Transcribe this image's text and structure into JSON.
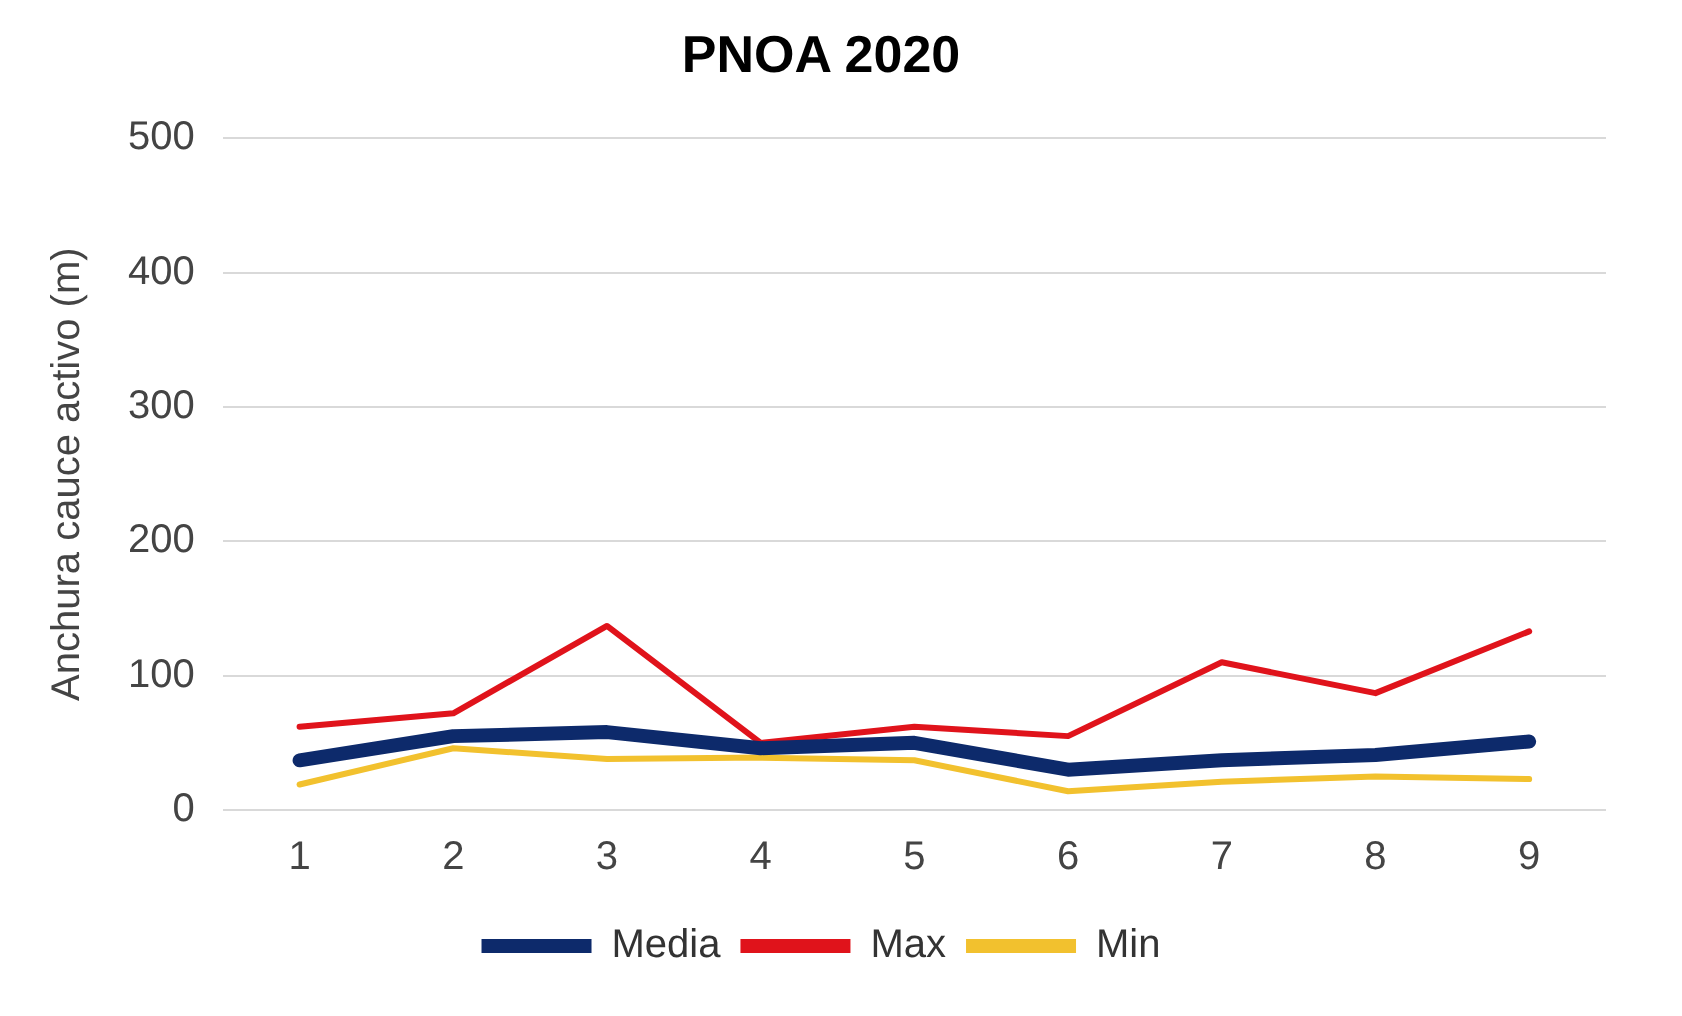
{
  "chart_data": {
    "type": "line",
    "title": "PNOA 2020",
    "ylabel": "Anchura cauce activo (m)",
    "categories": [
      "1",
      "2",
      "3",
      "4",
      "5",
      "6",
      "7",
      "8",
      "9"
    ],
    "series": [
      {
        "name": "Media",
        "color": "#0d2a6b",
        "values": [
          37,
          55,
          58,
          46,
          50,
          30,
          37,
          41,
          51
        ]
      },
      {
        "name": "Max",
        "color": "#e0131b",
        "values": [
          62,
          72,
          137,
          50,
          62,
          55,
          110,
          87,
          133
        ]
      },
      {
        "name": "Min",
        "color": "#f2c12e",
        "values": [
          19,
          46,
          38,
          39,
          37,
          14,
          21,
          25,
          23
        ]
      }
    ],
    "ylim": [
      0,
      500
    ],
    "yticks": [
      0,
      100,
      200,
      300,
      400,
      500
    ],
    "grid": "y",
    "legend": "bottom",
    "marker": "none",
    "line_style": "solid"
  }
}
